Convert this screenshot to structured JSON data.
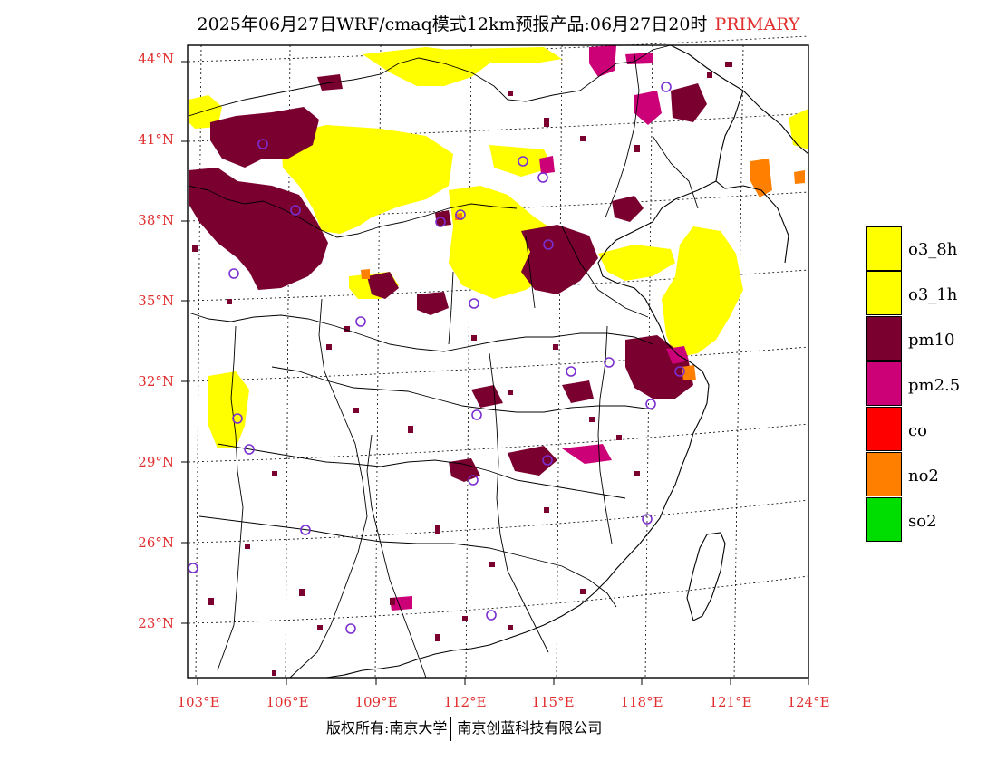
{
  "header": {
    "title": "2025年06月27日WRF/cmaq模式12km预报产品:06月27日20时",
    "product_tag": "PRIMARY"
  },
  "axes": {
    "lat_labels": [
      "44°N",
      "41°N",
      "38°N",
      "35°N",
      "32°N",
      "29°N",
      "26°N",
      "23°N"
    ],
    "lon_labels": [
      "103°E",
      "106°E",
      "109°E",
      "112°E",
      "115°E",
      "118°E",
      "121°E",
      "124°E"
    ]
  },
  "legend": [
    {
      "label": "o3_8h",
      "color": "#ffff00"
    },
    {
      "label": "o3_1h",
      "color": "#ffff00"
    },
    {
      "label": "pm10",
      "color": "#7a0030"
    },
    {
      "label": "pm2.5",
      "color": "#cc0077"
    },
    {
      "label": "co",
      "color": "#ff0000"
    },
    {
      "label": "no2",
      "color": "#ff7f00"
    },
    {
      "label": "so2",
      "color": "#00dd00"
    }
  ],
  "footer": {
    "copyright": "版权所有:南京大学",
    "company": "南京创蓝科技有限公司"
  },
  "colors": {
    "o3": "#ffff00",
    "pm10": "#7a0030",
    "pm25": "#cc0077",
    "no2": "#ff7f00",
    "station": "#7b2fd0",
    "axis_label": "#e03030"
  }
}
